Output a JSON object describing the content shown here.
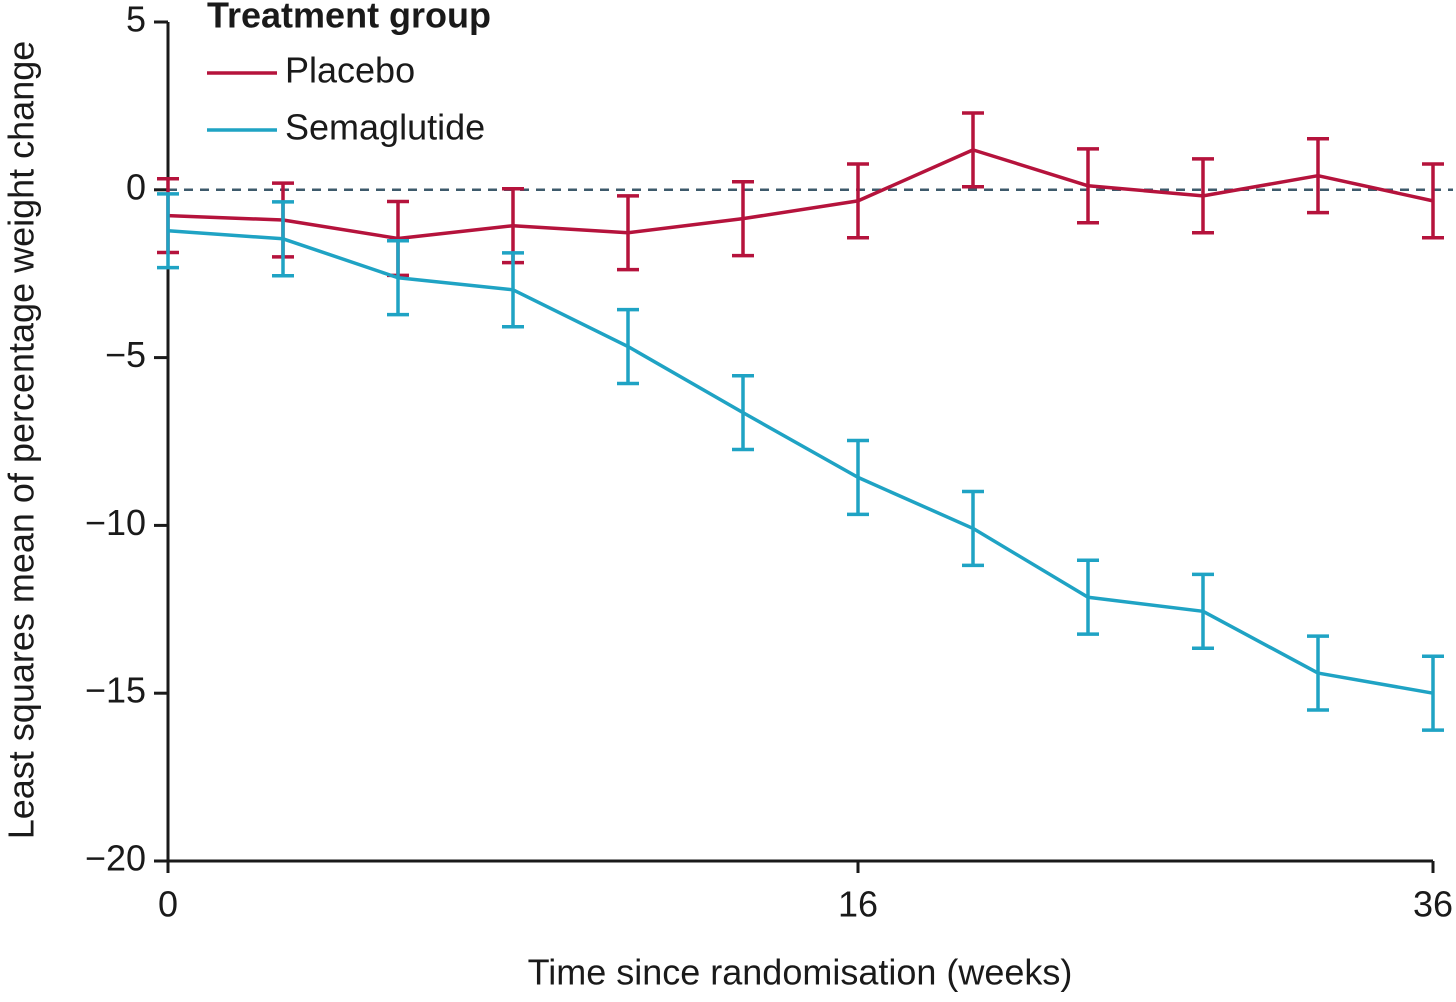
{
  "chart_data": {
    "type": "line",
    "x_label": "Time since randomisation (weeks)",
    "y_label": "Least squares mean of percentage weight change",
    "categories": [
      "0",
      null,
      null,
      null,
      null,
      null,
      "16",
      null,
      null,
      null,
      null,
      "36"
    ],
    "series": [
      {
        "name": "Placebo",
        "color": "#b5133c",
        "values": [
          -0.77,
          -0.9,
          -1.45,
          -1.07,
          -1.28,
          -0.86,
          -0.33,
          1.19,
          0.12,
          -0.18,
          0.42,
          -0.33
        ],
        "errors": [
          1.1,
          1.1,
          1.1,
          1.1,
          1.1,
          1.1,
          1.1,
          1.1,
          1.1,
          1.1,
          1.1,
          1.1
        ]
      },
      {
        "name": "Semaglutide",
        "color": "#1fa3c4",
        "values": [
          -1.22,
          -1.46,
          -2.62,
          -2.98,
          -4.67,
          -6.64,
          -8.57,
          -10.09,
          -12.14,
          -12.56,
          -14.4,
          -15.0
        ],
        "errors": [
          1.1,
          1.1,
          1.1,
          1.1,
          1.1,
          1.1,
          1.1,
          1.1,
          1.1,
          1.1,
          1.1,
          1.1
        ]
      }
    ],
    "ylim": [
      -20,
      5
    ],
    "yticks": [
      5,
      0,
      {
        "value": -5,
        "label": "−5"
      },
      {
        "value": -10,
        "label": "−10"
      },
      {
        "value": -15,
        "label": "−15"
      },
      {
        "value": -20,
        "label": "−20"
      }
    ],
    "reference_line": 0,
    "grid": false,
    "legend_title": "Treatment group",
    "legend_position": "top-left"
  }
}
